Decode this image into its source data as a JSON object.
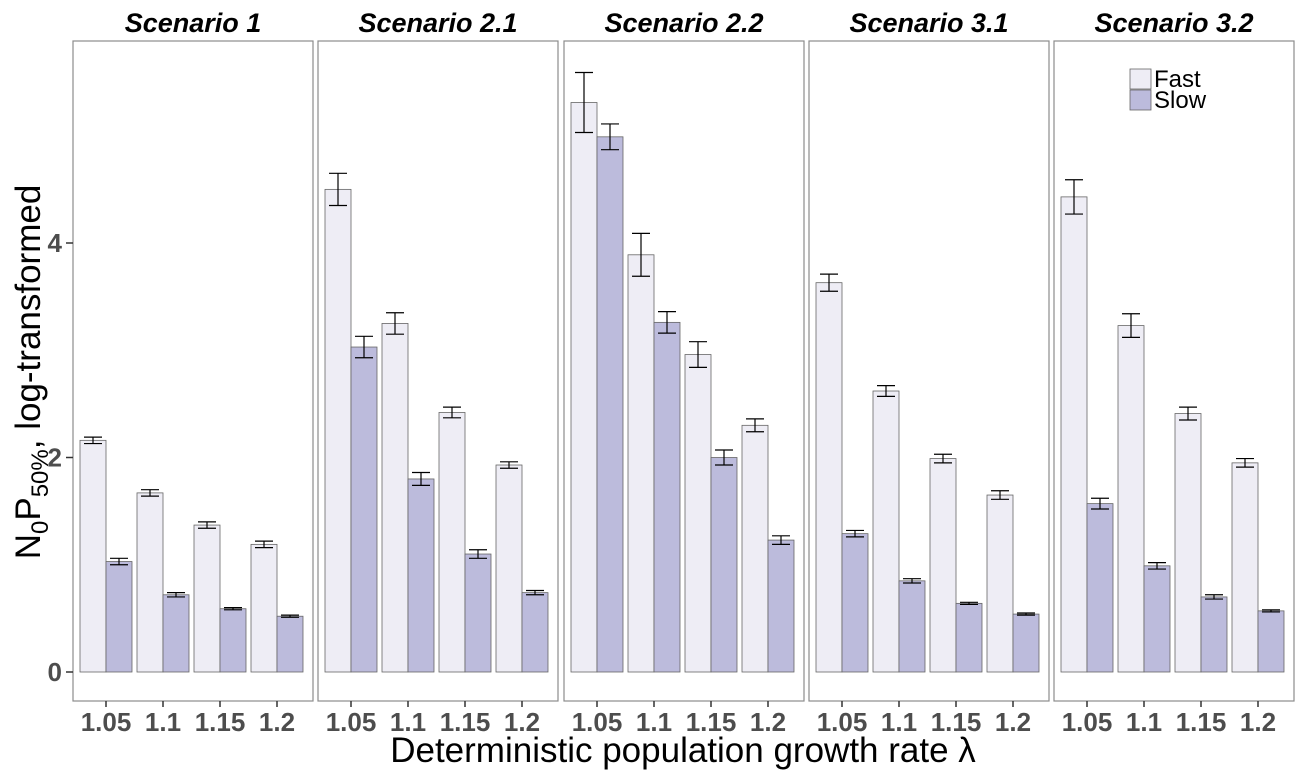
{
  "chart_data": {
    "type": "bar",
    "ylabel_main": "N",
    "ylabel_sub0": "0",
    "ylabel_p": "P",
    "ylabel_sub50": "50%",
    "ylabel_rest": ", log-transformed",
    "xlabel": "Deterministic population growth rate λ",
    "ylim": [
      0,
      5.5
    ],
    "yticks": [
      0,
      2,
      4
    ],
    "ytick_labels": [
      "0",
      "2",
      "4"
    ],
    "categories": [
      "1.05",
      "1.1",
      "1.15",
      "1.2"
    ],
    "legend": {
      "position": "top-right",
      "entries": [
        "Fast",
        "Slow"
      ]
    },
    "colors": {
      "Fast": "#eeedf5",
      "Slow": "#bcbbdc",
      "edge": "#666666",
      "frame": "#8c8c8c"
    },
    "grid": false,
    "panels": [
      {
        "title": "Scenario 1",
        "series": [
          {
            "name": "Fast",
            "values": [
              2.16,
              1.67,
              1.37,
              1.19
            ],
            "err": [
              0.03,
              0.03,
              0.03,
              0.03
            ]
          },
          {
            "name": "Slow",
            "values": [
              1.03,
              0.72,
              0.59,
              0.52
            ],
            "err": [
              0.03,
              0.02,
              0.01,
              0.01
            ]
          }
        ]
      },
      {
        "title": "Scenario 2.1",
        "series": [
          {
            "name": "Fast",
            "values": [
              4.5,
              3.25,
              2.42,
              1.93
            ],
            "err": [
              0.15,
              0.1,
              0.05,
              0.03
            ]
          },
          {
            "name": "Slow",
            "values": [
              3.03,
              1.8,
              1.1,
              0.74
            ],
            "err": [
              0.1,
              0.06,
              0.04,
              0.02
            ]
          }
        ]
      },
      {
        "title": "Scenario 2.2",
        "series": [
          {
            "name": "Fast",
            "values": [
              5.31,
              3.89,
              2.96,
              2.3
            ],
            "err": [
              0.28,
              0.2,
              0.12,
              0.06
            ]
          },
          {
            "name": "Slow",
            "values": [
              4.99,
              3.26,
              2.0,
              1.23
            ],
            "err": [
              0.12,
              0.1,
              0.07,
              0.04
            ]
          }
        ]
      },
      {
        "title": "Scenario 3.1",
        "series": [
          {
            "name": "Fast",
            "values": [
              3.63,
              2.62,
              1.99,
              1.65
            ],
            "err": [
              0.08,
              0.05,
              0.04,
              0.04
            ]
          },
          {
            "name": "Slow",
            "values": [
              1.29,
              0.85,
              0.64,
              0.54
            ],
            "err": [
              0.03,
              0.02,
              0.01,
              0.01
            ]
          }
        ]
      },
      {
        "title": "Scenario 3.2",
        "series": [
          {
            "name": "Fast",
            "values": [
              4.43,
              3.23,
              2.41,
              1.95
            ],
            "err": [
              0.16,
              0.11,
              0.06,
              0.04
            ]
          },
          {
            "name": "Slow",
            "values": [
              1.57,
              0.99,
              0.7,
              0.57
            ],
            "err": [
              0.05,
              0.03,
              0.02,
              0.01
            ]
          }
        ]
      }
    ]
  }
}
